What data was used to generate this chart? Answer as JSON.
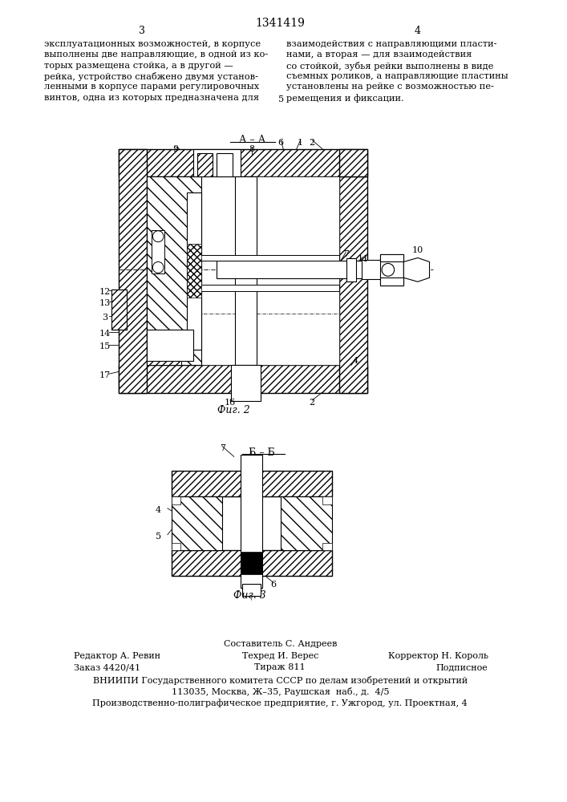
{
  "title": "1341419",
  "page_left": "3",
  "page_right": "4",
  "text_left": "эксплуатационных возможностей, в корпусе\nвыполнены две направляющие, в одной из ко-\nторых размещена стойка, а в другой —\nрейка, устройство снабжено двумя установ-\nленными в корпусе парами регулировочных\nвинтов, одна из которых предназначена для",
  "text_right": "взаимодействия с направляющими пласти-\nнами, а вторая — для взаимодействия\nсо стойкой, зубья рейки выполнены в виде\nсъемных роликов, а направляющие пластины\nустановлены на рейке с возможностью пе-\nремещения и фиксации.",
  "five_label": "5",
  "fig2_section_label": "А – А",
  "fig2_caption": "Фиг. 2",
  "fig3_section_label": "Б – Б",
  "fig3_caption": "Фиг. 3",
  "footer_line1": "Составитель С. Андреев",
  "footer_col1_r1": "Редактор А. Ревин",
  "footer_col2_r1": "Техред И. Верес",
  "footer_col3_r1": "Корректор Н. Король",
  "footer_col1_r2": "Заказ 4420/41",
  "footer_col2_r2": "Тираж 811",
  "footer_col3_r2": "Подписное",
  "footer_vniipи": "ВНИИПИ Государственного комитета СССР по делам изобретений и открытий",
  "footer_addr1": "113035, Москва, Ж–35, Раушская  наб., д.  4/5",
  "footer_addr2": "Производственно-полиграфическое предприятие, г. Ужгород, ул. Проектная, 4",
  "bg_color": "#ffffff",
  "line_color": "#000000"
}
